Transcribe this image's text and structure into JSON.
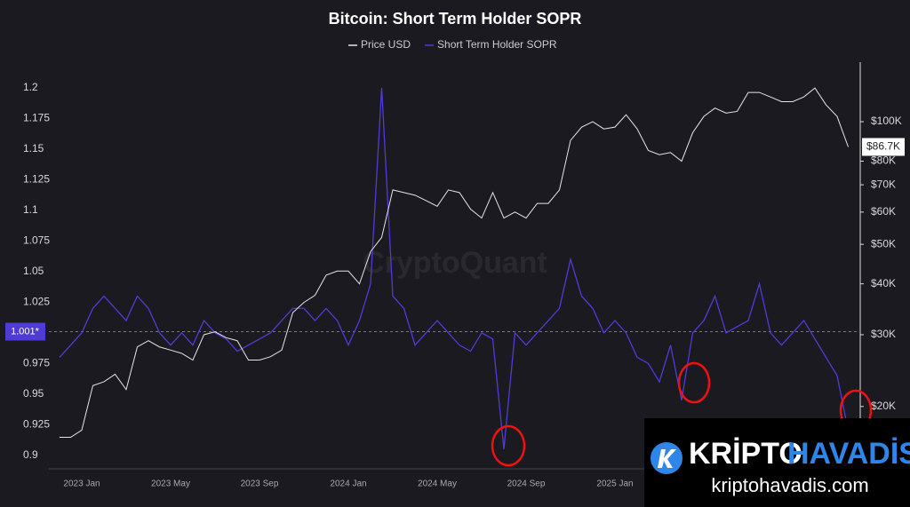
{
  "chart_data": {
    "type": "line",
    "title": "Bitcoin: Short Term Holder SOPR",
    "watermark": "CryptoQuant",
    "categories": [
      null,
      null,
      "2023 Jan",
      null,
      null,
      null,
      null,
      null,
      null,
      null,
      "2023 May",
      null,
      null,
      null,
      null,
      null,
      null,
      null,
      "2023 Sep",
      null,
      null,
      null,
      null,
      null,
      null,
      null,
      "2024 Jan",
      null,
      null,
      null,
      null,
      null,
      null,
      null,
      "2024 May",
      null,
      null,
      null,
      null,
      null,
      null,
      null,
      "2024 Sep",
      null,
      null,
      null,
      null,
      null,
      null,
      null,
      "2025 Jan",
      null,
      null,
      null,
      null,
      null,
      null,
      null,
      null,
      null,
      null,
      null,
      null,
      null,
      null,
      null,
      null,
      null,
      null,
      null,
      null,
      null
    ],
    "series": [
      {
        "name": "Price USD",
        "color": "#e6e6e8",
        "axis": "y2",
        "values": [
          16800,
          16800,
          17500,
          22500,
          23000,
          24000,
          22000,
          28000,
          29000,
          28000,
          27500,
          27000,
          26000,
          30000,
          30500,
          29500,
          29000,
          26000,
          26000,
          26500,
          27500,
          34000,
          36000,
          37500,
          42000,
          43000,
          43000,
          40000,
          48000,
          52000,
          68000,
          67000,
          66000,
          64000,
          62000,
          68000,
          67000,
          61000,
          58000,
          67000,
          58000,
          60000,
          58000,
          63000,
          63000,
          68000,
          90000,
          97000,
          100000,
          96000,
          97000,
          104000,
          96000,
          85000,
          83000,
          84000,
          80000,
          94000,
          103000,
          108000,
          105000,
          106000,
          118000,
          118000,
          115000,
          112000,
          112000,
          115000,
          121000,
          110000,
          103000,
          86700
        ]
      },
      {
        "name": "Short Term Holder SOPR",
        "color": "#4f3cd6",
        "values": [
          0.98,
          0.99,
          1.0,
          1.02,
          1.03,
          1.02,
          1.01,
          1.03,
          1.02,
          1.0,
          0.99,
          1.0,
          0.99,
          1.01,
          1.0,
          0.995,
          0.985,
          0.99,
          0.995,
          1.0,
          1.01,
          1.02,
          1.02,
          1.01,
          1.02,
          1.01,
          0.99,
          1.01,
          1.04,
          1.2,
          1.03,
          1.02,
          0.99,
          1.0,
          1.01,
          1.0,
          0.99,
          0.985,
          1.0,
          0.995,
          0.905,
          1.0,
          0.99,
          1.0,
          1.01,
          1.02,
          1.06,
          1.03,
          1.02,
          1.0,
          1.01,
          1.0,
          0.98,
          0.975,
          0.96,
          0.99,
          0.945,
          1.0,
          1.01,
          1.03,
          1.0,
          1.005,
          1.01,
          1.04,
          1.0,
          0.99,
          1.0,
          1.01,
          0.995,
          0.98,
          0.965,
          0.92
        ]
      }
    ],
    "ylim": [
      0.889,
      1.221
    ],
    "yticks": [
      0.9,
      0.925,
      0.95,
      0.975,
      1.025,
      1.05,
      1.075,
      1.1,
      1.125,
      1.15,
      1.175,
      1.2
    ],
    "y2lim": [
      14060,
      140000
    ],
    "y2log": true,
    "y2ticks": [
      {
        "value": 20000,
        "label": "$20K"
      },
      {
        "value": 30000,
        "label": "$30K"
      },
      {
        "value": 40000,
        "label": "$40K"
      },
      {
        "value": 50000,
        "label": "$50K"
      },
      {
        "value": 60000,
        "label": "$60K"
      },
      {
        "value": 70000,
        "label": "$70K"
      },
      {
        "value": 80000,
        "label": "$80K"
      },
      {
        "value": 100000,
        "label": "$100K"
      }
    ],
    "reference_line": {
      "value": 1.001,
      "label": "1.001*"
    },
    "price_marker": {
      "value": 86700,
      "label": "$86.7K"
    },
    "grid": false
  },
  "branding": {
    "word1": "KRİPTO",
    "word2": "HAVADİS",
    "url": "kriptohavadis.com"
  }
}
